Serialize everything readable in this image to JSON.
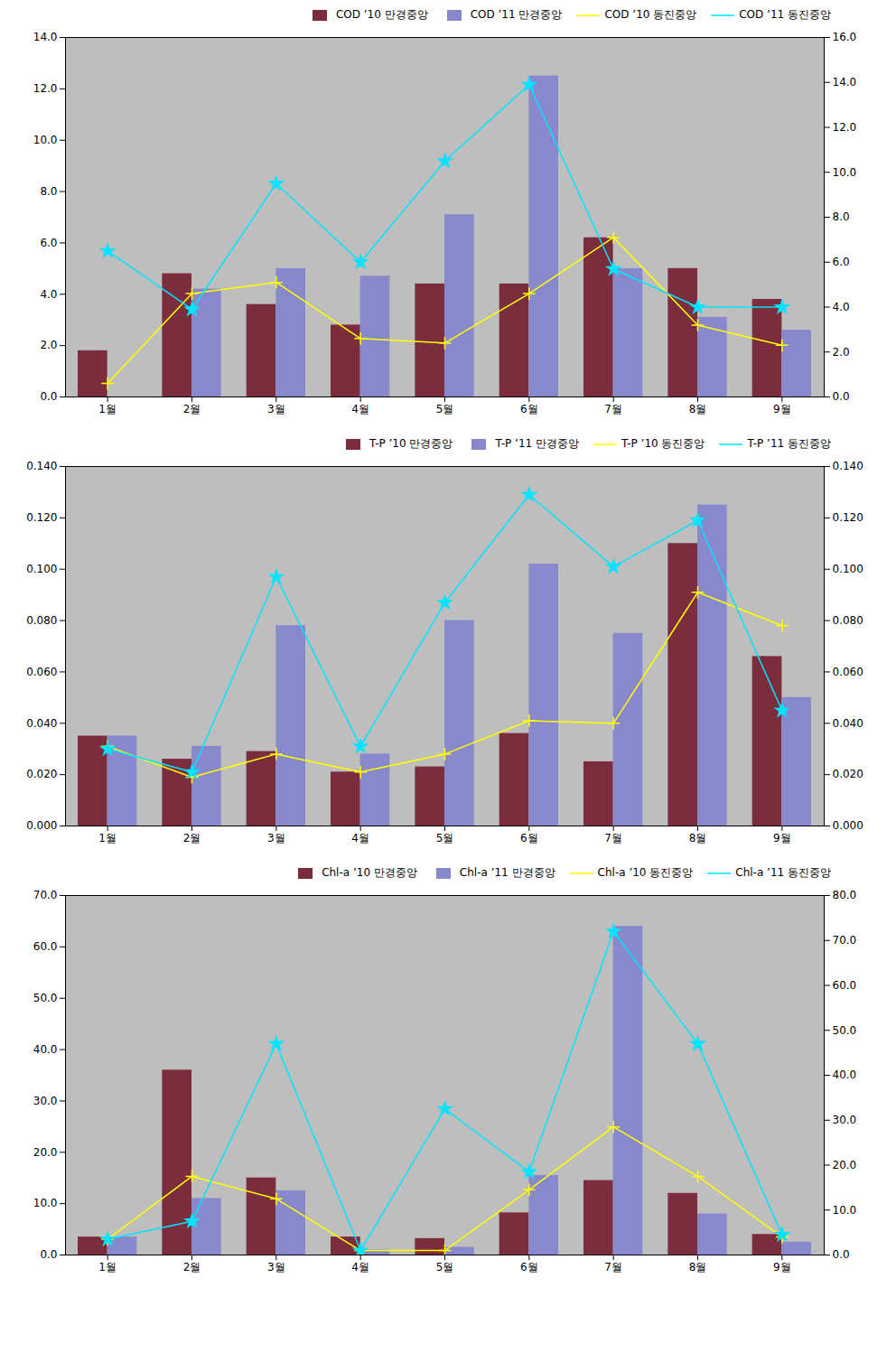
{
  "chart_data": [
    {
      "type": "bar",
      "categories": [
        "1월",
        "2월",
        "3월",
        "4월",
        "5월",
        "6월",
        "7월",
        "8월",
        "9월"
      ],
      "series": [
        {
          "name": "COD ’10 만경중앙",
          "type": "bar",
          "color": "#7B2D3E",
          "values": [
            1.8,
            4.8,
            3.6,
            2.8,
            4.4,
            4.4,
            6.2,
            5.0,
            3.8
          ]
        },
        {
          "name": "COD ’11 만경중앙",
          "type": "bar",
          "color": "#8888CC",
          "values": [
            0.0,
            4.2,
            5.0,
            4.7,
            7.1,
            12.5,
            5.0,
            3.1,
            2.6
          ]
        },
        {
          "name": "COD ’10 동진중앙",
          "type": "line",
          "axis": "y2",
          "marker": "plus",
          "color": "#FFFF00",
          "values": [
            0.6,
            4.6,
            5.1,
            2.6,
            2.4,
            4.6,
            7.1,
            3.2,
            2.3
          ]
        },
        {
          "name": "COD ’11 동진중앙",
          "type": "line",
          "axis": "y2",
          "marker": "star",
          "color": "#00E5FF",
          "values": [
            6.5,
            3.9,
            9.5,
            6.0,
            10.5,
            13.9,
            5.7,
            4.0,
            4.0
          ]
        }
      ],
      "ylim": [
        0,
        14
      ],
      "yticks": [
        {
          "value": 0,
          "label": "0.0"
        },
        {
          "value": 2,
          "label": "2.0"
        },
        {
          "value": 4,
          "label": "4.0"
        },
        {
          "value": 6,
          "label": "6.0"
        },
        {
          "value": 8,
          "label": "8.0"
        },
        {
          "value": 10,
          "label": "10.0"
        },
        {
          "value": 12,
          "label": "12.0"
        },
        {
          "value": 14,
          "label": "14.0"
        }
      ],
      "y2lim": [
        0,
        16
      ],
      "y2ticks": [
        {
          "value": 0,
          "label": "0.0"
        },
        {
          "value": 2,
          "label": "2.0"
        },
        {
          "value": 4,
          "label": "4.0"
        },
        {
          "value": 6,
          "label": "6.0"
        },
        {
          "value": 8,
          "label": "8.0"
        },
        {
          "value": 10,
          "label": "10.0"
        },
        {
          "value": 12,
          "label": "12.0"
        },
        {
          "value": 14,
          "label": "14.0"
        },
        {
          "value": 16,
          "label": "16.0"
        }
      ],
      "grid": false,
      "legend": "upper right"
    },
    {
      "type": "bar",
      "categories": [
        "1월",
        "2월",
        "3월",
        "4월",
        "5월",
        "6월",
        "7월",
        "8월",
        "9월"
      ],
      "series": [
        {
          "name": "T-P ’10 만경중앙",
          "type": "bar",
          "color": "#7B2D3E",
          "values": [
            0.035,
            0.026,
            0.029,
            0.021,
            0.023,
            0.036,
            0.025,
            0.11,
            0.066
          ]
        },
        {
          "name": "T-P ’11 만경중앙",
          "type": "bar",
          "color": "#8888CC",
          "values": [
            0.035,
            0.031,
            0.078,
            0.028,
            0.08,
            0.102,
            0.075,
            0.125,
            0.05
          ]
        },
        {
          "name": "T-P ’10 동진중앙",
          "type": "line",
          "axis": "y2",
          "marker": "plus",
          "color": "#FFFF00",
          "values": [
            0.031,
            0.019,
            0.028,
            0.021,
            0.028,
            0.041,
            0.04,
            0.091,
            0.078
          ]
        },
        {
          "name": "T-P ’11 동진중앙",
          "type": "line",
          "axis": "y2",
          "marker": "star",
          "color": "#00E5FF",
          "values": [
            0.03,
            0.021,
            0.097,
            0.031,
            0.087,
            0.129,
            0.101,
            0.119,
            0.045
          ]
        }
      ],
      "ylim": [
        0,
        0.14
      ],
      "yticks": [
        {
          "value": 0,
          "label": "0.000"
        },
        {
          "value": 0.02,
          "label": "0.020"
        },
        {
          "value": 0.04,
          "label": "0.040"
        },
        {
          "value": 0.06,
          "label": "0.060"
        },
        {
          "value": 0.08,
          "label": "0.080"
        },
        {
          "value": 0.1,
          "label": "0.100"
        },
        {
          "value": 0.12,
          "label": "0.120"
        },
        {
          "value": 0.14,
          "label": "0.140"
        }
      ],
      "y2lim": [
        0,
        0.14
      ],
      "y2ticks": [
        {
          "value": 0,
          "label": "0.000"
        },
        {
          "value": 0.02,
          "label": "0.020"
        },
        {
          "value": 0.04,
          "label": "0.040"
        },
        {
          "value": 0.06,
          "label": "0.060"
        },
        {
          "value": 0.08,
          "label": "0.080"
        },
        {
          "value": 0.1,
          "label": "0.100"
        },
        {
          "value": 0.12,
          "label": "0.120"
        },
        {
          "value": 0.14,
          "label": "0.140"
        }
      ],
      "grid": false,
      "legend": "upper right"
    },
    {
      "type": "bar",
      "categories": [
        "1월",
        "2월",
        "3월",
        "4월",
        "5월",
        "6월",
        "7월",
        "8월",
        "9월"
      ],
      "series": [
        {
          "name": "Chl-a ’10 만경중앙",
          "type": "bar",
          "color": "#7B2D3E",
          "values": [
            3.5,
            36.0,
            15.0,
            3.5,
            3.2,
            8.2,
            14.5,
            12.0,
            4.0
          ]
        },
        {
          "name": "Chl-a ’11 만경중앙",
          "type": "bar",
          "color": "#8888CC",
          "values": [
            3.5,
            11.0,
            12.5,
            1.0,
            1.5,
            15.5,
            64.0,
            8.0,
            2.5
          ]
        },
        {
          "name": "Chl-a ’10 동진중앙",
          "type": "line",
          "axis": "y2",
          "marker": "plus",
          "color": "#FFFF00",
          "values": [
            3.5,
            17.5,
            12.5,
            1.0,
            1.0,
            14.5,
            28.5,
            17.5,
            4.0
          ]
        },
        {
          "name": "Chl-a ’11 동진중앙",
          "type": "line",
          "axis": "y2",
          "marker": "star",
          "color": "#00E5FF",
          "values": [
            3.5,
            7.5,
            47.0,
            1.0,
            32.5,
            18.5,
            72.0,
            47.0,
            4.5
          ]
        }
      ],
      "ylim": [
        0,
        70
      ],
      "yticks": [
        {
          "value": 0,
          "label": "0.0"
        },
        {
          "value": 10,
          "label": "10.0"
        },
        {
          "value": 20,
          "label": "20.0"
        },
        {
          "value": 30,
          "label": "30.0"
        },
        {
          "value": 40,
          "label": "40.0"
        },
        {
          "value": 50,
          "label": "50.0"
        },
        {
          "value": 60,
          "label": "60.0"
        },
        {
          "value": 70,
          "label": "70.0"
        }
      ],
      "y2lim": [
        0,
        80
      ],
      "y2ticks": [
        {
          "value": 0,
          "label": "0.0"
        },
        {
          "value": 10,
          "label": "10.0"
        },
        {
          "value": 20,
          "label": "20.0"
        },
        {
          "value": 30,
          "label": "30.0"
        },
        {
          "value": 40,
          "label": "40.0"
        },
        {
          "value": 50,
          "label": "50.0"
        },
        {
          "value": 60,
          "label": "60.0"
        },
        {
          "value": 70,
          "label": "70.0"
        },
        {
          "value": 80,
          "label": "80.0"
        }
      ],
      "grid": false,
      "legend": "upper right"
    }
  ]
}
